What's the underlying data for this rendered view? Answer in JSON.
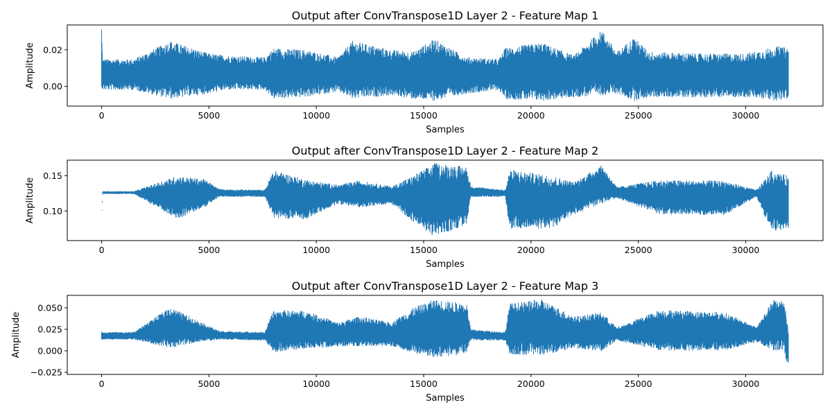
{
  "chart_data": [
    {
      "type": "line",
      "title": "Output after ConvTranspose1D Layer 2 - Feature Map 1",
      "xlabel": "Samples",
      "ylabel": "Amplitude",
      "xlim": [
        -1600,
        33600
      ],
      "ylim": [
        -0.0108,
        0.0336
      ],
      "xticks": [
        0,
        5000,
        10000,
        15000,
        20000,
        25000,
        30000
      ],
      "xtick_labels": [
        "0",
        "5000",
        "10000",
        "15000",
        "20000",
        "25000",
        "30000"
      ],
      "yticks": [
        0.0,
        0.02
      ],
      "ytick_labels": [
        "0.00",
        "0.02"
      ],
      "color": "#1f77b4",
      "series": [
        {
          "x": [
            0,
            50,
            1500,
            3200,
            5000,
            5800,
            7600,
            8000,
            9500,
            11000,
            11700,
            13500,
            14500,
            15500,
            17000,
            18500,
            18800,
            20500,
            22000,
            23300,
            24000,
            24800,
            25500,
            28000,
            30000,
            31500,
            32000
          ],
          "y_upper": [
            0.031,
            0.015,
            0.015,
            0.025,
            0.018,
            0.017,
            0.016,
            0.021,
            0.02,
            0.016,
            0.025,
            0.02,
            0.019,
            0.026,
            0.016,
            0.015,
            0.021,
            0.024,
            0.017,
            0.031,
            0.019,
            0.027,
            0.019,
            0.018,
            0.018,
            0.022,
            0.021
          ],
          "y_lower": [
            0.0,
            -0.002,
            -0.002,
            -0.007,
            -0.004,
            -0.002,
            -0.002,
            -0.007,
            -0.006,
            -0.003,
            -0.007,
            -0.005,
            -0.007,
            -0.008,
            -0.004,
            -0.002,
            -0.007,
            -0.008,
            -0.006,
            -0.005,
            -0.004,
            -0.008,
            -0.006,
            -0.006,
            -0.006,
            -0.008,
            -0.007
          ]
        }
      ]
    },
    {
      "type": "line",
      "title": "Output after ConvTranspose1D Layer 2 - Feature Map 2",
      "xlabel": "Samples",
      "ylabel": "Amplitude",
      "xlim": [
        -1600,
        33600
      ],
      "ylim": [
        0.058,
        0.172
      ],
      "xticks": [
        0,
        5000,
        10000,
        15000,
        20000,
        25000,
        30000
      ],
      "xtick_labels": [
        "0",
        "5000",
        "10000",
        "15000",
        "20000",
        "25000",
        "30000"
      ],
      "yticks": [
        0.1,
        0.15
      ],
      "ytick_labels": [
        "0.10",
        "0.15"
      ],
      "color": "#1f77b4",
      "series": [
        {
          "x": [
            0,
            50,
            1500,
            3500,
            4800,
            5500,
            7600,
            8000,
            9500,
            11000,
            12000,
            13500,
            14500,
            15500,
            17000,
            17200,
            18800,
            19000,
            21000,
            22000,
            23300,
            24000,
            26000,
            29000,
            30500,
            31200,
            32000
          ],
          "y_upper": [
            0.089,
            0.128,
            0.128,
            0.15,
            0.145,
            0.131,
            0.13,
            0.158,
            0.145,
            0.137,
            0.143,
            0.135,
            0.15,
            0.168,
            0.163,
            0.135,
            0.13,
            0.159,
            0.15,
            0.141,
            0.165,
            0.134,
            0.144,
            0.143,
            0.13,
            0.157,
            0.15
          ],
          "y_lower": [
            0.089,
            0.124,
            0.124,
            0.088,
            0.105,
            0.12,
            0.12,
            0.09,
            0.088,
            0.11,
            0.105,
            0.11,
            0.085,
            0.063,
            0.08,
            0.12,
            0.12,
            0.075,
            0.075,
            0.095,
            0.11,
            0.118,
            0.095,
            0.094,
            0.12,
            0.07,
            0.075
          ]
        }
      ]
    },
    {
      "type": "line",
      "title": "Output after ConvTranspose1D Layer 2 - Feature Map 3",
      "xlabel": "Samples",
      "ylabel": "Amplitude",
      "xlim": [
        -1600,
        33600
      ],
      "ylim": [
        -0.0275,
        0.0645
      ],
      "xticks": [
        0,
        5000,
        10000,
        15000,
        20000,
        25000,
        30000
      ],
      "xtick_labels": [
        "0",
        "5000",
        "10000",
        "15000",
        "20000",
        "25000",
        "30000"
      ],
      "yticks": [
        -0.025,
        0.0,
        0.025,
        0.05
      ],
      "ytick_labels": [
        "−0.025",
        "0.000",
        "0.025",
        "0.050"
      ],
      "color": "#1f77b4",
      "series": [
        {
          "x": [
            0,
            1500,
            3200,
            4500,
            5500,
            7600,
            8000,
            9500,
            11000,
            12000,
            13500,
            14500,
            15500,
            17000,
            17200,
            18800,
            19000,
            20500,
            22000,
            23300,
            24000,
            26000,
            29000,
            30500,
            31300,
            31800,
            32000
          ],
          "y_upper": [
            0.022,
            0.022,
            0.051,
            0.035,
            0.023,
            0.022,
            0.047,
            0.047,
            0.033,
            0.04,
            0.033,
            0.05,
            0.06,
            0.055,
            0.025,
            0.022,
            0.055,
            0.06,
            0.04,
            0.045,
            0.027,
            0.048,
            0.045,
            0.028,
            0.06,
            0.059,
            0.025
          ],
          "y_lower": [
            0.013,
            0.013,
            0.003,
            0.01,
            0.013,
            0.012,
            -0.002,
            0.002,
            0.005,
            0.005,
            0.005,
            -0.003,
            -0.008,
            -0.004,
            0.012,
            0.012,
            -0.005,
            -0.005,
            0.002,
            0.0,
            0.012,
            0.0,
            0.0,
            0.01,
            0.0,
            0.0,
            -0.026
          ]
        }
      ]
    }
  ]
}
